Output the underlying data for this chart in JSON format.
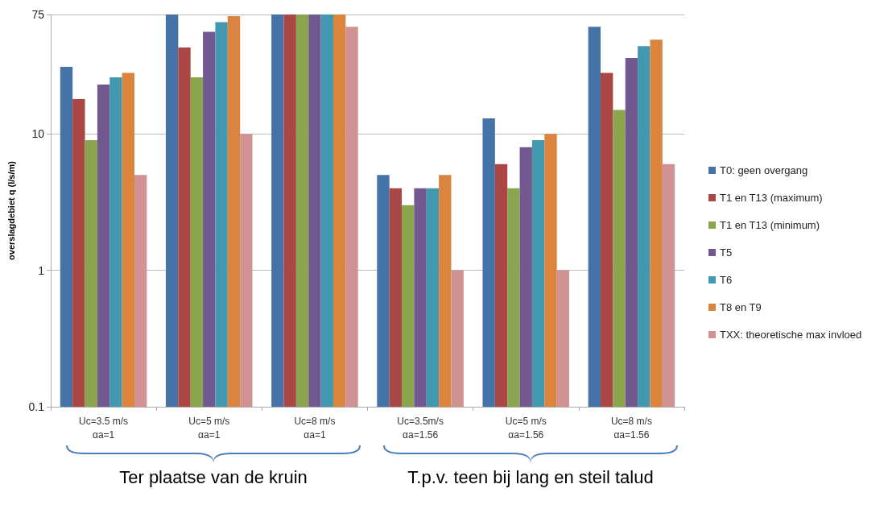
{
  "chart_data": {
    "type": "bar",
    "categories": [
      "Uc=3.5 m/s\nαa=1",
      "Uc=5 m/s\nαa=1",
      "Uc=8 m/s\nαa=1",
      "Uc=3.5m/s\nαa=1.56",
      "Uc=5 m/s\nαa=1.56",
      "Uc=8 m/s\nαa=1.56"
    ],
    "ylabel": "overslagdebiet q (l/s/m)",
    "log": "y",
    "ylim": [
      0.1,
      75
    ],
    "yticks": [
      0.1,
      1,
      10,
      75
    ],
    "grid": "y",
    "legend": "right",
    "series": [
      {
        "name": "T0: geen overgang",
        "color": "#4572a7",
        "values": [
          31,
          75,
          75,
          5,
          13,
          61
        ]
      },
      {
        "name": "T1 en T13 (maximum)",
        "color": "#aa4643",
        "values": [
          18,
          43,
          75,
          4,
          6,
          28
        ]
      },
      {
        "name": "T1 en T13 (minimum)",
        "color": "#89a54e",
        "values": [
          9,
          26,
          75,
          3,
          4,
          15
        ]
      },
      {
        "name": "T5",
        "color": "#71588f",
        "values": [
          23,
          56,
          75,
          4,
          8,
          36
        ]
      },
      {
        "name": "T6",
        "color": "#4198af",
        "values": [
          26,
          66,
          75,
          4,
          9,
          44
        ]
      },
      {
        "name": "T8 en T9",
        "color": "#db843d",
        "values": [
          28,
          73,
          75,
          5,
          10,
          49
        ]
      },
      {
        "name": "TXX: theoretische max invloed",
        "color": "#d09292",
        "values": [
          5,
          10,
          61,
          1,
          1,
          6
        ]
      }
    ],
    "annotations": [
      "Ter plaatse van de kruin",
      "T.p.v.  teen bij lang en steil talud"
    ]
  }
}
